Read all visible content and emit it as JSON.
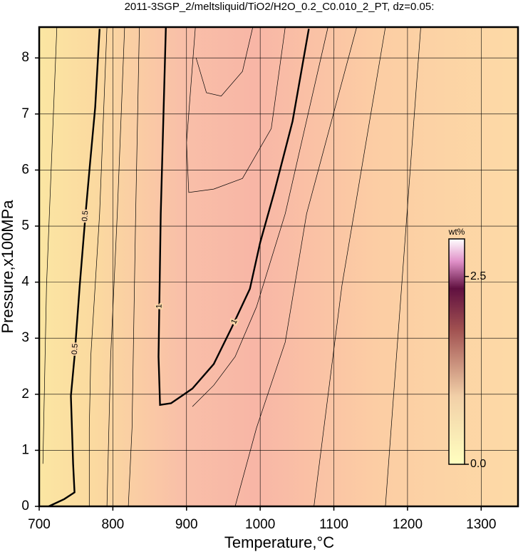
{
  "chart_data": {
    "type": "contour",
    "title": "2011-3SGP_2/meltsliquid/TiO2/H2O_0.2_C0.010_2_PT, dz=0.05:",
    "xlabel": "Temperature,°C",
    "ylabel": "Pressure,x100MPa",
    "xlim": [
      700,
      1350
    ],
    "ylim": [
      0,
      8.55
    ],
    "xticks": [
      700,
      800,
      900,
      1000,
      1100,
      1200,
      1300
    ],
    "yticks": [
      0,
      1,
      2,
      3,
      4,
      5,
      6,
      7,
      8
    ],
    "grid": true,
    "colorbar": {
      "label": "wt%",
      "clim": [
        0,
        3
      ],
      "ticks": [
        {
          "value": 0,
          "label": "0.0"
        },
        {
          "value": 2.5,
          "label": "2.5"
        }
      ]
    },
    "contours": [
      {
        "label": "0.5",
        "bold": true,
        "x": [
          713,
          734,
          748,
          746,
          743,
          748,
          755,
          763,
          769,
          776,
          782
        ],
        "y": [
          0,
          0.13,
          0.25,
          0.76,
          1.97,
          2.67,
          3.94,
          5.22,
          6.11,
          7.12,
          8.52
        ]
      },
      {
        "label": "1",
        "bold": true,
        "x": [
          872,
          865,
          862,
          864,
          879,
          908,
          937,
          961,
          986,
          1000,
          1019,
          1044,
          1066
        ],
        "y": [
          8.55,
          5.22,
          2.67,
          1.81,
          1.84,
          2.1,
          2.54,
          3.18,
          3.88,
          4.71,
          5.6,
          6.87,
          8.52
        ]
      },
      {
        "x": [
          724,
          710,
          705
        ],
        "y": [
          8.55,
          3.94,
          0.76
        ]
      },
      {
        "x": [
          792,
          782,
          770,
          768,
          768
        ],
        "y": [
          8.55,
          5.22,
          2.67,
          1.4,
          0
        ]
      },
      {
        "x": [
          816,
          806,
          797,
          792
        ],
        "y": [
          8.55,
          5.22,
          2.67,
          0
        ]
      },
      {
        "x": [
          836,
          831,
          826,
          821
        ],
        "y": [
          8.55,
          5.22,
          1.4,
          0
        ]
      },
      {
        "x": [
          912,
          900,
          903,
          937,
          976,
          1015,
          1034
        ],
        "y": [
          8.55,
          6.49,
          5.6,
          5.66,
          5.85,
          6.74,
          8.55
        ]
      },
      {
        "x": [
          913,
          927,
          947,
          976,
          990
        ],
        "y": [
          8.0,
          7.38,
          7.32,
          7.76,
          8.55
        ]
      },
      {
        "x": [
          1092,
          1034,
          995,
          966,
          937,
          908
        ],
        "y": [
          8.55,
          5.22,
          3.56,
          2.67,
          2.16,
          1.78
        ]
      },
      {
        "x": [
          1131,
          1063,
          1034,
          995,
          966
        ],
        "y": [
          8.55,
          5.22,
          2.93,
          1.4,
          0
        ]
      },
      {
        "x": [
          1170,
          1111,
          1073
        ],
        "y": [
          8.55,
          3.94,
          0
        ]
      },
      {
        "x": [
          1218,
          1170
        ],
        "y": [
          8.55,
          0
        ]
      }
    ]
  }
}
